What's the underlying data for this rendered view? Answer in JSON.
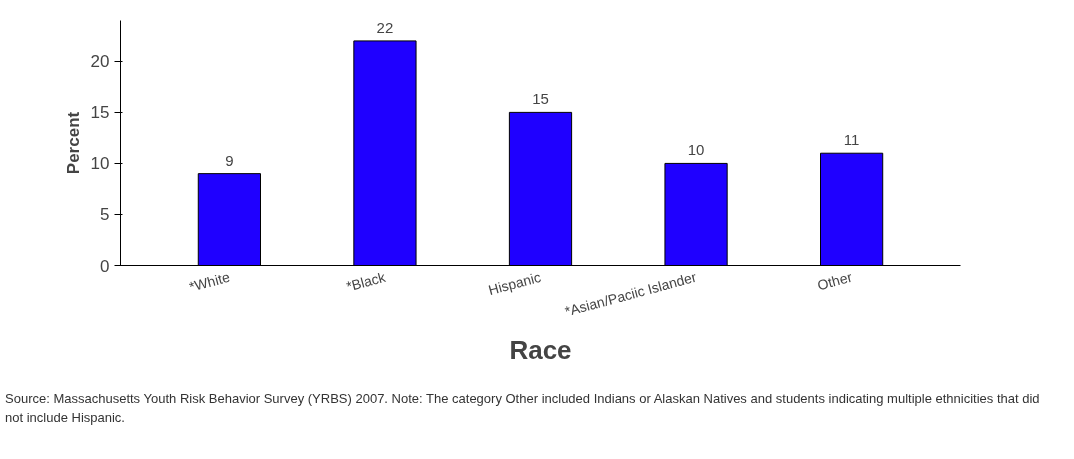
{
  "chart_data": {
    "type": "bar",
    "categories": [
      "*White",
      "*Black",
      "Hispanic",
      "*Asian/Paciic Islander",
      "Other"
    ],
    "values": [
      9,
      22,
      15,
      10,
      11
    ],
    "color": "#1f00ff",
    "data_labels": true,
    "xlabel": "Race",
    "ylabel": "Percent",
    "ylim": [
      0,
      24
    ],
    "yticks": [
      0,
      5,
      10,
      15,
      20
    ],
    "grid": false,
    "annotations": [
      "Source: Massachusetts Youth Risk Behavior Survey (YRBS) 2007. Note: The category Other included Indians or Alaskan Natives and students indicating multiple ethnicities that did not include Hispanic."
    ]
  }
}
